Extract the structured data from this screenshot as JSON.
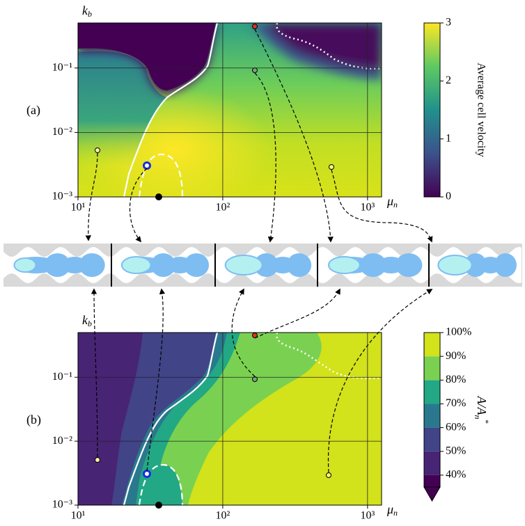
{
  "chart_data": [
    {
      "type": "heatmap",
      "panel_label": "(a)",
      "x_label": {
        "symbol": "μ",
        "subscript": "n"
      },
      "y_label": {
        "symbol": "k",
        "subscript": "b"
      },
      "log_x": true,
      "log_y": true,
      "grid": true,
      "xlim": [
        10,
        1250
      ],
      "ylim": [
        0.001,
        0.5
      ],
      "xticks": [
        {
          "value": 10,
          "label": "10¹"
        },
        {
          "value": 100,
          "label": "10²"
        },
        {
          "value": 1000,
          "label": "10³"
        }
      ],
      "yticks": [
        {
          "value": 0.001,
          "label": "10⁻³"
        },
        {
          "value": 0.01,
          "label": "10⁻²"
        },
        {
          "value": 0.1,
          "label": "10⁻¹"
        }
      ],
      "colorbar": {
        "label": "Average cell velocity",
        "lim": [
          0,
          3
        ],
        "ticks": [
          0,
          1,
          2,
          3
        ],
        "colors": [
          "#440154",
          "#3b528b",
          "#21918c",
          "#5ec962",
          "#fde725"
        ]
      }
    },
    {
      "type": "heatmap",
      "panel_label": "(b)",
      "x_label": {
        "symbol": "μ",
        "subscript": "n"
      },
      "y_label": {
        "symbol": "k",
        "subscript": "b"
      },
      "log_x": true,
      "log_y": true,
      "grid": true,
      "xlim": [
        10,
        1250
      ],
      "ylim": [
        0.001,
        0.5
      ],
      "xticks": [
        {
          "value": 10,
          "label": "10¹"
        },
        {
          "value": 100,
          "label": "10²"
        },
        {
          "value": 1000,
          "label": "10³"
        }
      ],
      "yticks": [
        {
          "value": 0.001,
          "label": "10⁻³"
        },
        {
          "value": 0.01,
          "label": "10⁻²"
        },
        {
          "value": 0.1,
          "label": "10⁻¹"
        }
      ],
      "colorbar": {
        "label": {
          "text": "A/A",
          "subscript": "n",
          "superscript": "*"
        },
        "lim": [
          35,
          100
        ],
        "ticks": [
          {
            "value": 40,
            "label": "40%"
          },
          {
            "value": 50,
            "label": "50%"
          },
          {
            "value": 60,
            "label": "60%"
          },
          {
            "value": 70,
            "label": "70%"
          },
          {
            "value": 80,
            "label": "80%"
          },
          {
            "value": 90,
            "label": "90%"
          },
          {
            "value": 100,
            "label": "100%"
          }
        ],
        "colors": [
          "#440154",
          "#482475",
          "#414487",
          "#2a788e",
          "#22a884",
          "#7ad151",
          "#d2e21b"
        ],
        "extend_color": "#440154"
      }
    }
  ]
}
